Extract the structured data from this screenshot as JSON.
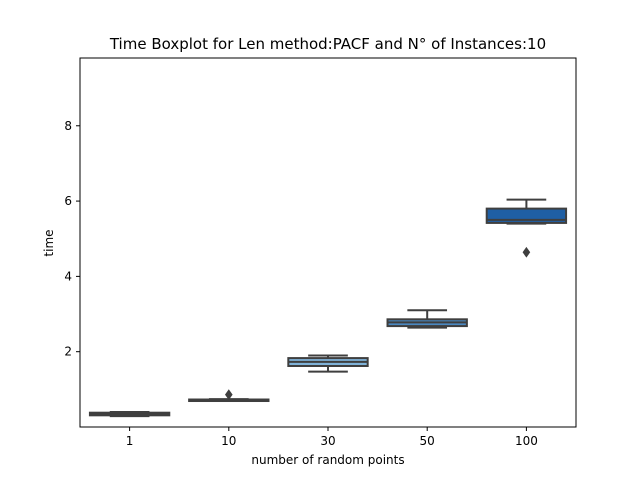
{
  "chart_data": {
    "type": "boxplot",
    "title": "Time Boxplot for Len method:PACF and N° of Instances:10",
    "xlabel": "number of random points",
    "ylabel": "time",
    "ylim": [
      0.0,
      9.8
    ],
    "yticks": [
      2,
      4,
      6,
      8
    ],
    "categories": [
      "1",
      "10",
      "30",
      "50",
      "100"
    ],
    "boxes": [
      {
        "category": "1",
        "whislo": 0.29,
        "q1": 0.31,
        "med": 0.34,
        "q3": 0.38,
        "whishi": 0.4,
        "fliers": [],
        "color": "#e9f2fa"
      },
      {
        "category": "10",
        "whislo": 0.7,
        "q1": 0.71,
        "med": 0.72,
        "q3": 0.73,
        "whishi": 0.74,
        "fliers": [
          0.86
        ],
        "color": "#c6dbef"
      },
      {
        "category": "30",
        "whislo": 1.47,
        "q1": 1.62,
        "med": 1.73,
        "q3": 1.83,
        "whishi": 1.9,
        "fliers": [],
        "color": "#7fb2d8"
      },
      {
        "category": "50",
        "whislo": 2.64,
        "q1": 2.68,
        "med": 2.78,
        "q3": 2.86,
        "whishi": 3.1,
        "fliers": [],
        "color": "#4a88c0"
      },
      {
        "category": "100",
        "whislo": 5.4,
        "q1": 5.42,
        "med": 5.5,
        "q3": 5.8,
        "whishi": 6.04,
        "fliers": [
          4.64
        ],
        "color": "#1f5fa4"
      }
    ],
    "grid": false
  }
}
